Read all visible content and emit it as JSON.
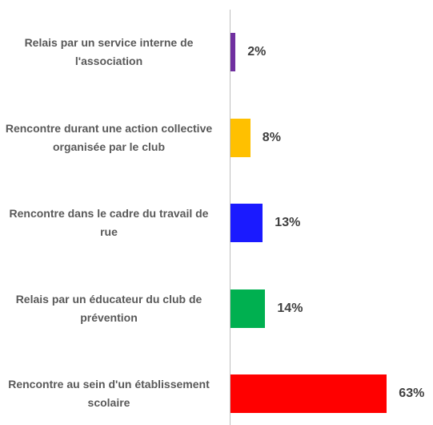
{
  "chart_data": {
    "type": "bar",
    "orientation": "horizontal",
    "categories": [
      "Relais par un service interne de l'association",
      "Rencontre durant une action collective organisée par le club",
      "Rencontre dans le cadre du travail de rue",
      "Relais par un éducateur du club de prévention",
      "Rencontre au sein d'un établissement scolaire"
    ],
    "values": [
      2,
      8,
      13,
      14,
      63
    ],
    "value_labels": [
      "2%",
      "8%",
      "13%",
      "14%",
      "63%"
    ],
    "colors": [
      "#7030a0",
      "#ffc000",
      "#1a1aff",
      "#00b050",
      "#ff0000"
    ],
    "xlim": [
      0,
      70
    ]
  }
}
